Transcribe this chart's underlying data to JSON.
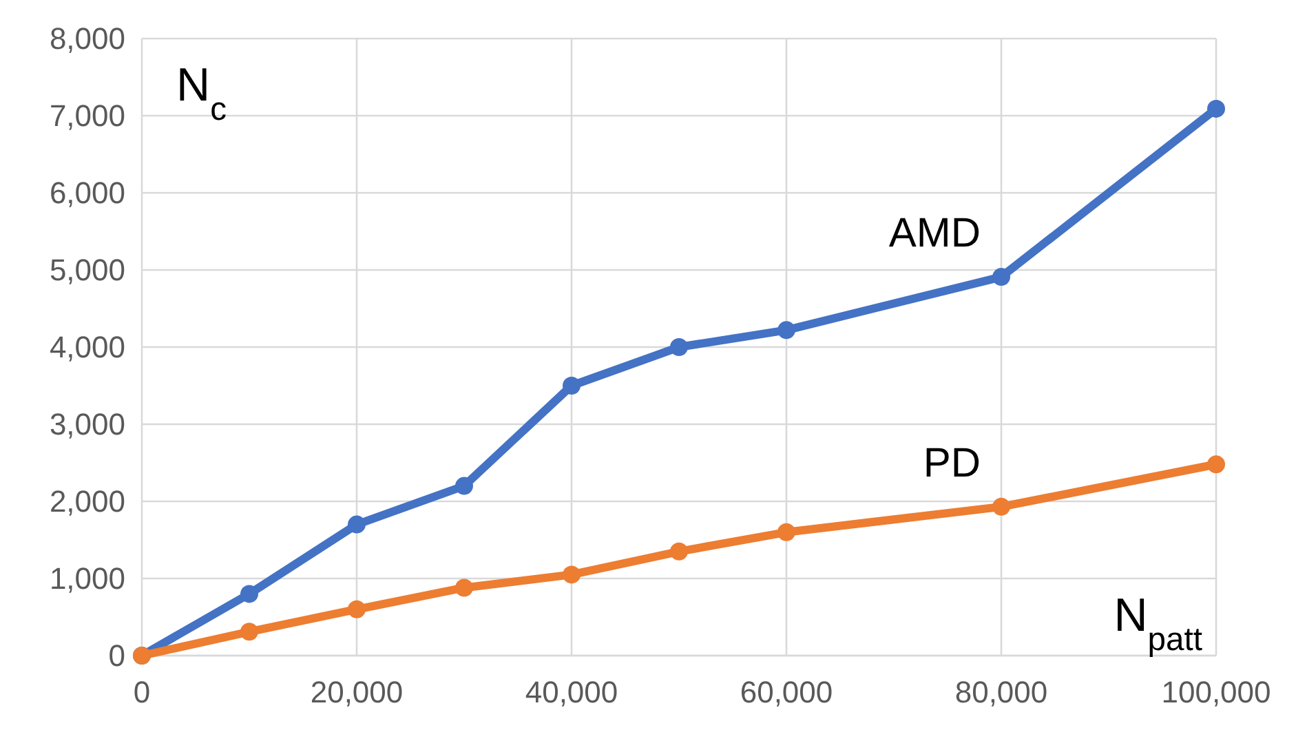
{
  "chart_data": {
    "type": "line",
    "xlabel": "N$_{patt}$",
    "ylabel": "N$_{c}$",
    "xlim": [
      0,
      100000
    ],
    "xticks": [
      {
        "value": 0,
        "label": "0"
      },
      {
        "value": 20000,
        "label": "20,000"
      },
      {
        "value": 40000,
        "label": "40,000"
      },
      {
        "value": 60000,
        "label": "60,000"
      },
      {
        "value": 80000,
        "label": "80,000"
      },
      {
        "value": 100000,
        "label": "100,000"
      }
    ],
    "ylim": [
      0,
      8000
    ],
    "yticks": [
      {
        "value": 0,
        "label": "0"
      },
      {
        "value": 1000,
        "label": "1,000"
      },
      {
        "value": 2000,
        "label": "2,000"
      },
      {
        "value": 3000,
        "label": "3,000"
      },
      {
        "value": 4000,
        "label": "4,000"
      },
      {
        "value": 5000,
        "label": "5,000"
      },
      {
        "value": 6000,
        "label": "6,000"
      },
      {
        "value": 7000,
        "label": "7,000"
      },
      {
        "value": 8000,
        "label": "8,000"
      }
    ],
    "grid": true,
    "marker": "circle",
    "line_style": "solid",
    "series": [
      {
        "name": "AMD",
        "color": "#4472c4",
        "x": [
          0,
          10000,
          20000,
          30000,
          40000,
          50000,
          60000,
          80000,
          100000
        ],
        "values": [
          0,
          800,
          1700,
          2200,
          3500,
          4000,
          4220,
          4910,
          7090
        ]
      },
      {
        "name": "PD",
        "color": "#ed7d31",
        "x": [
          0,
          10000,
          20000,
          30000,
          40000,
          50000,
          60000,
          80000,
          100000
        ],
        "values": [
          0,
          310,
          600,
          880,
          1050,
          1350,
          1600,
          1930,
          2480
        ]
      }
    ]
  }
}
